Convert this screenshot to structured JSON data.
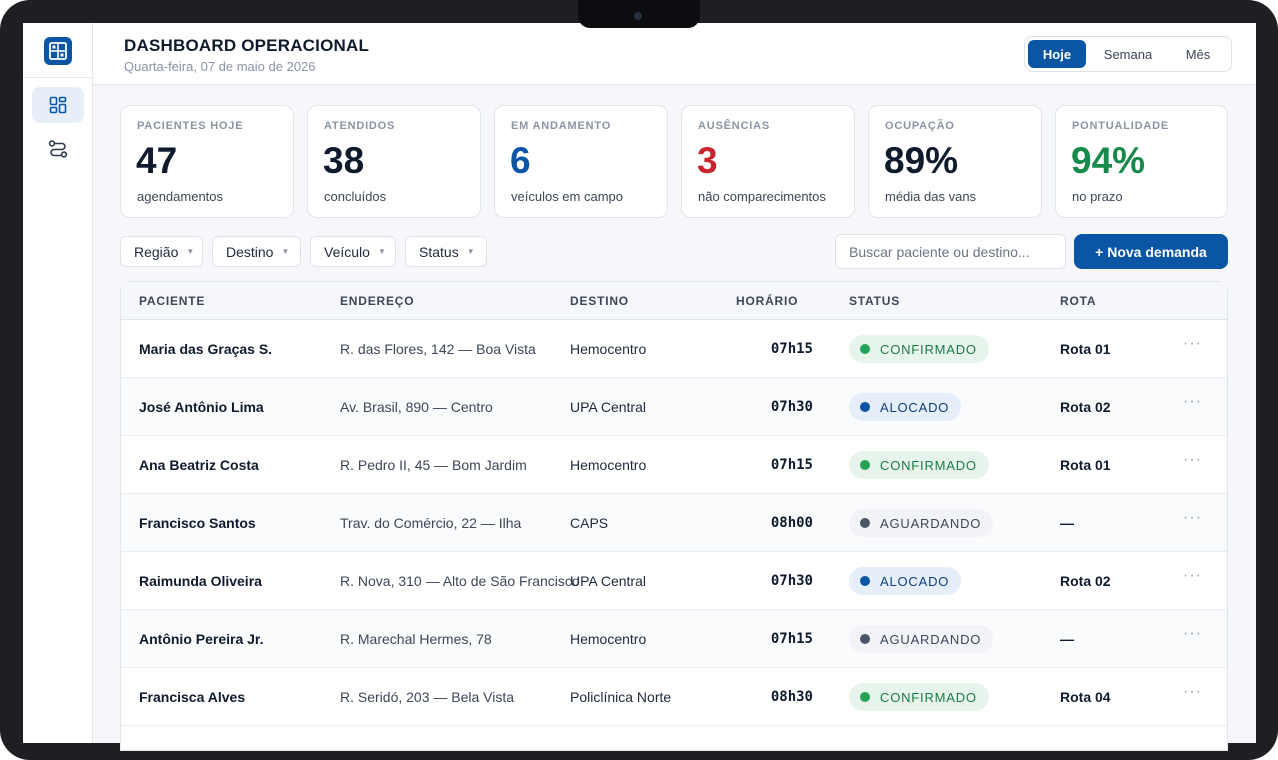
{
  "header": {
    "title": "DASHBOARD OPERACIONAL",
    "date": "Quarta-feira, 07 de maio de 2026",
    "periods": [
      "Hoje",
      "Semana",
      "Mês"
    ],
    "active_period": "Hoje"
  },
  "sidebar": {
    "items": [
      {
        "icon": "dashboard-grid-icon",
        "active": true
      },
      {
        "icon": "routes-icon",
        "active": false
      }
    ]
  },
  "kpis": [
    {
      "label": "PACIENTES HOJE",
      "value": "47",
      "sub": "agendamentos",
      "color": "#0f1b2d"
    },
    {
      "label": "ATENDIDOS",
      "value": "38",
      "sub": "concluídos",
      "color": "#0f1b2d"
    },
    {
      "label": "EM ANDAMENTO",
      "value": "6",
      "sub": "veículos em campo",
      "color": "#0b56a4"
    },
    {
      "label": "AUSÊNCIAS",
      "value": "3",
      "sub": "não comparecimentos",
      "color": "#c8262e"
    },
    {
      "label": "OCUPAÇÃO",
      "value": "89%",
      "sub": "média das vans",
      "color": "#0f1b2d"
    },
    {
      "label": "PONTUALIDADE",
      "value": "94%",
      "sub": "no prazo",
      "color": "#168a4a"
    }
  ],
  "filters": [
    "Região",
    "Destino",
    "Veículo",
    "Status"
  ],
  "search": {
    "placeholder": "Buscar paciente ou destino...",
    "value": ""
  },
  "new_button": "+ Nova demanda",
  "table": {
    "columns": [
      "PACIENTE",
      "ENDEREÇO",
      "DESTINO",
      "HORÁRIO",
      "STATUS",
      "ROTA"
    ],
    "rows": [
      {
        "paciente": "Maria das Graças S.",
        "endereco": "R. das Flores, 142 — Boa Vista",
        "destino": "Hemocentro",
        "horario": "07h15",
        "status": "CONFIRMADO",
        "rota": "Rota 01"
      },
      {
        "paciente": "José Antônio Lima",
        "endereco": "Av. Brasil, 890 — Centro",
        "destino": "UPA Central",
        "horario": "07h30",
        "status": "ALOCADO",
        "rota": "Rota 02"
      },
      {
        "paciente": "Ana Beatriz Costa",
        "endereco": "R. Pedro II, 45 — Bom Jardim",
        "destino": "Hemocentro",
        "horario": "07h15",
        "status": "CONFIRMADO",
        "rota": "Rota 01"
      },
      {
        "paciente": "Francisco Santos",
        "endereco": "Trav. do Comércio, 22 — Ilha",
        "destino": "CAPS",
        "horario": "08h00",
        "status": "AGUARDANDO",
        "rota": "—"
      },
      {
        "paciente": "Raimunda Oliveira",
        "endereco": "R. Nova, 310 — Alto de São Francisco",
        "destino": "UPA Central",
        "horario": "07h30",
        "status": "ALOCADO",
        "rota": "Rota 02"
      },
      {
        "paciente": "Antônio Pereira Jr.",
        "endereco": "R. Marechal Hermes, 78",
        "destino": "Hemocentro",
        "horario": "07h15",
        "status": "AGUARDANDO",
        "rota": "—"
      },
      {
        "paciente": "Francisca Alves",
        "endereco": "R. Seridó, 203 — Bela Vista",
        "destino": "Policlínica Norte",
        "horario": "08h30",
        "status": "CONFIRMADO",
        "rota": "Rota 04"
      }
    ],
    "row_action_icon": "more-horizontal-icon"
  },
  "colors": {
    "primary": "#0b56a4",
    "confirmado": "#23a35a",
    "alocado": "#0b56a4",
    "aguardando": "#4a5567",
    "ausencias": "#c8262e",
    "pontualidade": "#168a4a"
  }
}
